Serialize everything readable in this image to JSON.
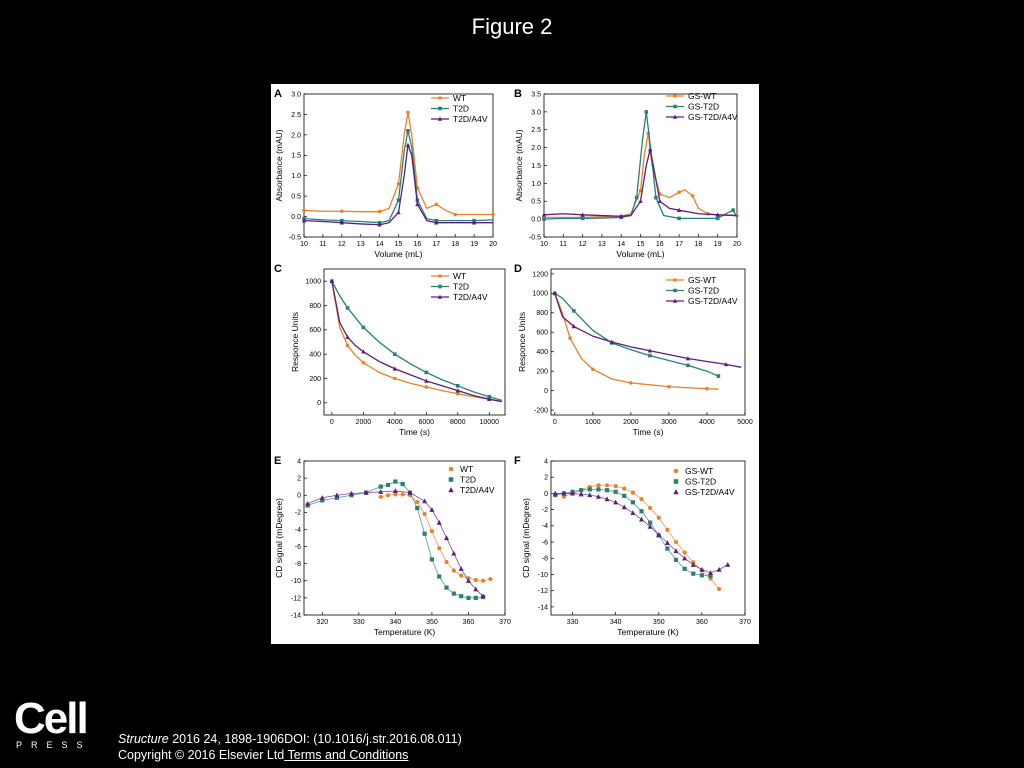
{
  "page": {
    "title": "Figure 2"
  },
  "footer": {
    "citation_journal": "Structure",
    "citation_rest": " 2016 24, 1898-1906DOI: (10.1016/j.str.2016.08.011)",
    "copyright": "Copyright © 2016 Elsevier Ltd",
    "terms_link": " Terms and Conditions"
  },
  "logo": {
    "word": "Cell",
    "sub": "PRESS"
  },
  "colors": {
    "orange": "#e8822a",
    "teal": "#2c7f78",
    "purple": "#5b1f7a"
  },
  "chart_data": [
    {
      "panel": "A",
      "type": "line",
      "xlabel": "Volume (mL)",
      "ylabel": "Absorbance (mAU)",
      "xlim": [
        10,
        20
      ],
      "ylim": [
        -0.5,
        3.0
      ],
      "xticks": [
        10,
        11,
        12,
        13,
        14,
        15,
        16,
        17,
        18,
        19,
        20
      ],
      "yticks": [
        -0.5,
        0.0,
        0.5,
        1.0,
        1.5,
        2.0,
        2.5,
        3.0
      ],
      "legend_position": "top-right",
      "series": [
        {
          "name": "WT",
          "color": "orange",
          "marker": "circle",
          "x": [
            10,
            11,
            12,
            13,
            14,
            14.5,
            15,
            15.3,
            15.5,
            15.7,
            16,
            16.5,
            17,
            17.5,
            18,
            19,
            20
          ],
          "y": [
            0.15,
            0.13,
            0.13,
            0.12,
            0.12,
            0.2,
            0.8,
            2.0,
            2.55,
            2.0,
            0.7,
            0.2,
            0.3,
            0.15,
            0.05,
            0.05,
            0.05
          ]
        },
        {
          "name": "T2D",
          "color": "teal",
          "marker": "square",
          "x": [
            10,
            11,
            12,
            13,
            14,
            14.5,
            15,
            15.3,
            15.5,
            15.7,
            16,
            16.5,
            17,
            18,
            19,
            20
          ],
          "y": [
            -0.05,
            -0.08,
            -0.1,
            -0.12,
            -0.15,
            -0.1,
            0.4,
            1.6,
            2.1,
            1.7,
            0.4,
            -0.05,
            -0.1,
            -0.1,
            -0.1,
            -0.08
          ]
        },
        {
          "name": "T2D/A4V",
          "color": "purple",
          "marker": "triangle",
          "x": [
            10,
            11,
            12,
            13,
            14,
            14.5,
            15,
            15.3,
            15.5,
            15.7,
            16,
            16.5,
            17,
            18,
            19,
            20
          ],
          "y": [
            -0.1,
            -0.12,
            -0.15,
            -0.18,
            -0.2,
            -0.15,
            0.1,
            1.0,
            1.75,
            1.5,
            0.3,
            -0.1,
            -0.15,
            -0.15,
            -0.15,
            -0.15
          ]
        }
      ]
    },
    {
      "panel": "B",
      "type": "line",
      "xlabel": "Volume (mL)",
      "ylabel": "Absorbance (mAU)",
      "xlim": [
        10,
        20
      ],
      "ylim": [
        -0.5,
        3.5
      ],
      "xticks": [
        10,
        11,
        12,
        13,
        14,
        15,
        16,
        17,
        18,
        19,
        20
      ],
      "yticks": [
        -0.5,
        0.0,
        0.5,
        1.0,
        1.5,
        2.0,
        2.5,
        3.0,
        3.5
      ],
      "legend_position": "top-right",
      "series": [
        {
          "name": "GS-WT",
          "color": "orange",
          "marker": "circle",
          "x": [
            10,
            11,
            12,
            13,
            14,
            14.5,
            15,
            15.2,
            15.4,
            15.6,
            16,
            16.5,
            17,
            17.3,
            17.7,
            18,
            18.5,
            19,
            20
          ],
          "y": [
            0.05,
            0.05,
            0.05,
            0.07,
            0.08,
            0.15,
            0.8,
            1.8,
            2.4,
            1.5,
            0.7,
            0.6,
            0.75,
            0.82,
            0.65,
            0.3,
            0.15,
            0.12,
            0.1
          ]
        },
        {
          "name": "GS-T2D",
          "color": "teal",
          "marker": "square",
          "x": [
            10,
            11,
            12,
            13,
            14,
            14.5,
            14.8,
            15.1,
            15.3,
            15.5,
            15.8,
            16.2,
            17,
            18,
            19,
            19.6,
            19.8,
            20
          ],
          "y": [
            0.0,
            0.02,
            0.02,
            0.03,
            0.05,
            0.1,
            0.6,
            2.2,
            3.0,
            2.1,
            0.6,
            0.1,
            0.02,
            0.02,
            0.02,
            0.2,
            0.25,
            0.05
          ]
        },
        {
          "name": "GS-T2D/A4V",
          "color": "purple",
          "marker": "triangle",
          "x": [
            10,
            11,
            12,
            13,
            14,
            14.5,
            15,
            15.3,
            15.5,
            15.7,
            16,
            16.5,
            17,
            18,
            19,
            20
          ],
          "y": [
            0.12,
            0.15,
            0.12,
            0.1,
            0.08,
            0.1,
            0.5,
            1.5,
            1.95,
            1.4,
            0.5,
            0.3,
            0.25,
            0.15,
            0.12,
            0.1
          ]
        }
      ]
    },
    {
      "panel": "C",
      "type": "line",
      "xlabel": "Time (s)",
      "ylabel": "Responce Units",
      "xlim": [
        -500,
        11000
      ],
      "ylim": [
        -100,
        1100
      ],
      "xticks": [
        0,
        2000,
        4000,
        6000,
        8000,
        10000
      ],
      "yticks": [
        0,
        200,
        400,
        600,
        800,
        1000
      ],
      "legend_position": "top-right",
      "series": [
        {
          "name": "WT",
          "color": "orange",
          "marker": "circle",
          "x": [
            0,
            500,
            1000,
            1500,
            2000,
            3000,
            4000,
            5000,
            6000,
            7000,
            8000,
            9000,
            10000,
            10800
          ],
          "y": [
            1000,
            620,
            470,
            390,
            330,
            250,
            200,
            160,
            130,
            100,
            75,
            50,
            30,
            10
          ]
        },
        {
          "name": "T2D",
          "color": "teal",
          "marker": "square",
          "x": [
            0,
            500,
            1000,
            1500,
            2000,
            3000,
            4000,
            5000,
            6000,
            7000,
            8000,
            9000,
            10000,
            10800
          ],
          "y": [
            1000,
            880,
            780,
            700,
            620,
            500,
            400,
            320,
            250,
            190,
            140,
            90,
            50,
            20
          ]
        },
        {
          "name": "T2D/A4V",
          "color": "purple",
          "marker": "triangle",
          "x": [
            0,
            500,
            1000,
            1500,
            2000,
            3000,
            4000,
            5000,
            6000,
            7000,
            8000,
            9000,
            10000,
            10800
          ],
          "y": [
            1000,
            660,
            540,
            470,
            420,
            340,
            280,
            230,
            180,
            140,
            100,
            60,
            30,
            10
          ]
        }
      ]
    },
    {
      "panel": "D",
      "type": "line",
      "xlabel": "Time (s)",
      "ylabel": "Responce Units",
      "xlim": [
        -100,
        5000
      ],
      "ylim": [
        -250,
        1250
      ],
      "xticks": [
        0,
        1000,
        2000,
        3000,
        4000,
        5000
      ],
      "yticks": [
        -200,
        0,
        200,
        400,
        600,
        800,
        1000,
        1200
      ],
      "legend_position": "top-right",
      "series": [
        {
          "name": "GS-WT",
          "color": "orange",
          "marker": "circle",
          "x": [
            0,
            200,
            400,
            700,
            1000,
            1500,
            2000,
            2500,
            3000,
            3500,
            4000,
            4300
          ],
          "y": [
            1000,
            800,
            540,
            330,
            220,
            120,
            80,
            60,
            40,
            30,
            20,
            15
          ]
        },
        {
          "name": "GS-T2D",
          "color": "teal",
          "marker": "square",
          "x": [
            0,
            200,
            500,
            1000,
            1500,
            2000,
            2500,
            3000,
            3500,
            4000,
            4300
          ],
          "y": [
            1000,
            950,
            820,
            620,
            490,
            420,
            360,
            310,
            260,
            200,
            150
          ]
        },
        {
          "name": "GS-T2D/A4V",
          "color": "purple",
          "marker": "triangle",
          "x": [
            0,
            200,
            500,
            1000,
            1500,
            2000,
            2500,
            3000,
            3500,
            4000,
            4500,
            4900
          ],
          "y": [
            1000,
            760,
            660,
            560,
            500,
            450,
            410,
            370,
            330,
            300,
            270,
            240
          ]
        }
      ]
    },
    {
      "panel": "E",
      "type": "scatter",
      "xlabel": "Temperature (K)",
      "ylabel": "CD signal (mDegree)",
      "xlim": [
        315,
        370
      ],
      "ylim": [
        -14,
        4
      ],
      "xticks": [
        320,
        330,
        340,
        350,
        360,
        370
      ],
      "yticks": [
        -14,
        -12,
        -10,
        -8,
        -6,
        -4,
        -2,
        0,
        2,
        4
      ],
      "legend_position": "top-right",
      "series": [
        {
          "name": "WT",
          "color": "orange",
          "marker": "circle",
          "x": [
            336,
            338,
            340,
            342,
            344,
            346,
            348,
            350,
            352,
            354,
            356,
            358,
            360,
            362,
            364,
            366
          ],
          "y": [
            -0.2,
            0,
            0.1,
            0.1,
            0,
            -0.8,
            -2.2,
            -4.2,
            -6.2,
            -7.8,
            -8.8,
            -9.4,
            -9.7,
            -9.9,
            -10,
            -9.8
          ]
        },
        {
          "name": "T2D",
          "color": "teal",
          "marker": "square",
          "x": [
            316,
            320,
            324,
            328,
            332,
            336,
            338,
            340,
            342,
            344,
            346,
            348,
            350,
            352,
            354,
            356,
            358,
            360,
            362,
            364
          ],
          "y": [
            -1.2,
            -0.6,
            -0.3,
            0,
            0.3,
            1.0,
            1.2,
            1.6,
            1.3,
            0.3,
            -1.5,
            -4.5,
            -7.5,
            -9.5,
            -10.8,
            -11.5,
            -11.8,
            -12,
            -12,
            -11.9
          ]
        },
        {
          "name": "T2D/A4V",
          "color": "purple",
          "marker": "triangle",
          "x": [
            316,
            320,
            324,
            328,
            332,
            336,
            340,
            344,
            348,
            350,
            352,
            354,
            356,
            358,
            360,
            362,
            364
          ],
          "y": [
            -1.0,
            -0.3,
            0,
            0.2,
            0.3,
            0.4,
            0.5,
            0.3,
            -0.7,
            -1.7,
            -3.2,
            -5.0,
            -6.8,
            -8.6,
            -10.0,
            -11.0,
            -11.8
          ]
        }
      ]
    },
    {
      "panel": "F",
      "type": "scatter",
      "xlabel": "Temperature (K)",
      "ylabel": "CD signal (mDegree)",
      "xlim": [
        325,
        370
      ],
      "ylim": [
        -15,
        4
      ],
      "xticks": [
        330,
        340,
        350,
        360,
        370
      ],
      "yticks": [
        -14,
        -12,
        -10,
        -8,
        -6,
        -4,
        -2,
        0,
        2,
        4
      ],
      "legend_position": "top-right",
      "series": [
        {
          "name": "GS-WT",
          "color": "orange",
          "marker": "circle",
          "x": [
            328,
            330,
            332,
            334,
            336,
            338,
            340,
            342,
            344,
            346,
            348,
            350,
            352,
            354,
            356,
            358,
            360,
            362,
            364
          ],
          "y": [
            -0.4,
            0,
            0.4,
            0.8,
            1.0,
            1.0,
            0.9,
            0.6,
            0.1,
            -0.7,
            -1.8,
            -3.0,
            -4.5,
            -6.0,
            -7.3,
            -8.5,
            -9.5,
            -10.5,
            -11.8
          ]
        },
        {
          "name": "GS-T2D",
          "color": "teal",
          "marker": "square",
          "x": [
            326,
            328,
            330,
            332,
            334,
            336,
            338,
            340,
            342,
            344,
            346,
            348,
            350,
            352,
            354,
            356,
            358,
            360,
            362
          ],
          "y": [
            -0.2,
            0,
            0.2,
            0.4,
            0.5,
            0.5,
            0.4,
            0.2,
            -0.3,
            -1.1,
            -2.2,
            -3.6,
            -5.2,
            -6.8,
            -8.2,
            -9.3,
            -9.9,
            -10.1,
            -10.2
          ]
        },
        {
          "name": "GS-T2D/A4V",
          "color": "purple",
          "marker": "triangle",
          "x": [
            326,
            328,
            330,
            332,
            334,
            336,
            338,
            340,
            342,
            344,
            346,
            348,
            350,
            352,
            354,
            356,
            358,
            360,
            362,
            364,
            366
          ],
          "y": [
            0,
            0,
            0,
            -0.1,
            -0.2,
            -0.4,
            -0.7,
            -1.1,
            -1.7,
            -2.4,
            -3.2,
            -4.1,
            -5.1,
            -6.1,
            -7.1,
            -8.0,
            -8.8,
            -9.4,
            -9.8,
            -9.4,
            -8.8
          ]
        }
      ]
    }
  ]
}
